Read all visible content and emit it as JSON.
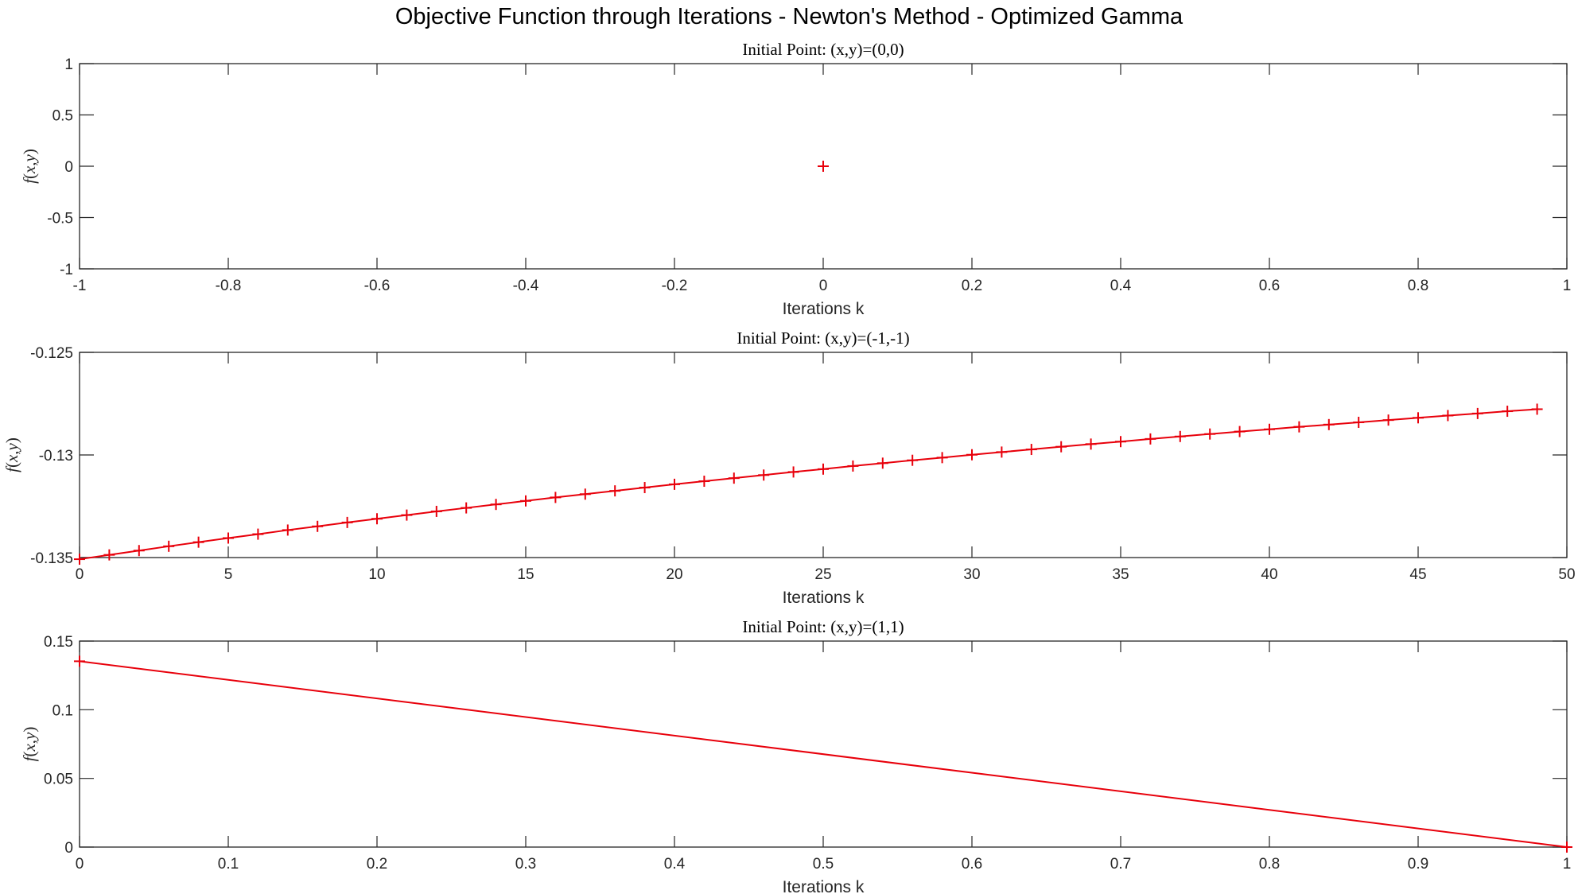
{
  "figure": {
    "title": "Objective Function through Iterations - Newton's Method - Optimized Gamma"
  },
  "colors": {
    "series": "#e8000b",
    "axes": "#262626",
    "background": "#ffffff"
  },
  "chart_data": [
    {
      "type": "line",
      "title": "Initial Point: (x,y)=(0,0)",
      "xlabel": "Iterations k",
      "ylabel": "f(x,y)",
      "xlim": [
        -1,
        1
      ],
      "ylim": [
        -1,
        1
      ],
      "xticks": [
        -1,
        -0.8,
        -0.6,
        -0.4,
        -0.2,
        0,
        0.2,
        0.4,
        0.6,
        0.8,
        1
      ],
      "xticklabels": [
        "-1",
        "-0.8",
        "-0.6",
        "-0.4",
        "-0.2",
        "0",
        "0.2",
        "0.4",
        "0.6",
        "0.8",
        "1"
      ],
      "yticks": [
        -1,
        -0.5,
        0,
        0.5,
        1
      ],
      "yticklabels": [
        "-1",
        "-0.5",
        "0",
        "0.5",
        "1"
      ],
      "marker": "+",
      "grid": false,
      "series": [
        {
          "x": [
            0
          ],
          "y": [
            0
          ]
        }
      ]
    },
    {
      "type": "line",
      "title": "Initial Point: (x,y)=(-1,-1)",
      "xlabel": "Iterations k",
      "ylabel": "f(x,y)",
      "xlim": [
        0,
        50
      ],
      "ylim": [
        -0.135,
        -0.125
      ],
      "xticks": [
        0,
        5,
        10,
        15,
        20,
        25,
        30,
        35,
        40,
        45,
        50
      ],
      "xticklabels": [
        "0",
        "5",
        "10",
        "15",
        "20",
        "25",
        "30",
        "35",
        "40",
        "45",
        "50"
      ],
      "yticks": [
        -0.135,
        -0.13,
        -0.125
      ],
      "yticklabels": [
        "-0.135",
        "-0.13",
        "-0.125"
      ],
      "marker": "+",
      "grid": false,
      "series": [
        {
          "x": [
            0,
            1,
            2,
            3,
            4,
            5,
            6,
            7,
            8,
            9,
            10,
            11,
            12,
            13,
            14,
            15,
            16,
            17,
            18,
            19,
            20,
            21,
            22,
            23,
            24,
            25,
            26,
            27,
            28,
            29,
            30,
            31,
            32,
            33,
            34,
            35,
            36,
            37,
            38,
            39,
            40,
            41,
            42,
            43,
            44,
            45,
            46,
            47,
            48,
            49
          ],
          "y": [
            -0.13508,
            -0.13487,
            -0.13466,
            -0.13445,
            -0.13425,
            -0.13405,
            -0.13386,
            -0.13366,
            -0.13348,
            -0.13329,
            -0.13311,
            -0.13293,
            -0.13275,
            -0.13258,
            -0.13241,
            -0.13224,
            -0.13207,
            -0.13191,
            -0.13175,
            -0.13159,
            -0.13143,
            -0.13128,
            -0.13113,
            -0.13098,
            -0.13083,
            -0.13069,
            -0.13054,
            -0.1304,
            -0.13026,
            -0.13013,
            -0.12999,
            -0.12986,
            -0.12973,
            -0.1296,
            -0.12947,
            -0.12935,
            -0.12922,
            -0.1291,
            -0.12898,
            -0.12886,
            -0.12875,
            -0.12863,
            -0.12852,
            -0.12841,
            -0.1283,
            -0.12819,
            -0.12808,
            -0.12798,
            -0.12787,
            -0.12777
          ]
        }
      ]
    },
    {
      "type": "line",
      "title": "Initial Point: (x,y)=(1,1)",
      "xlabel": "Iterations k",
      "ylabel": "f(x,y)",
      "xlim": [
        0,
        1
      ],
      "ylim": [
        0,
        0.15
      ],
      "xticks": [
        0,
        0.1,
        0.2,
        0.3,
        0.4,
        0.5,
        0.6,
        0.7,
        0.8,
        0.9,
        1
      ],
      "xticklabels": [
        "0",
        "0.1",
        "0.2",
        "0.3",
        "0.4",
        "0.5",
        "0.6",
        "0.7",
        "0.8",
        "0.9",
        "1"
      ],
      "yticks": [
        0,
        0.05,
        0.1,
        0.15
      ],
      "yticklabels": [
        "0",
        "0.05",
        "0.1",
        "0.15"
      ],
      "marker": "+",
      "grid": false,
      "series": [
        {
          "x": [
            0,
            1
          ],
          "y": [
            0.1353,
            0
          ]
        }
      ]
    }
  ]
}
